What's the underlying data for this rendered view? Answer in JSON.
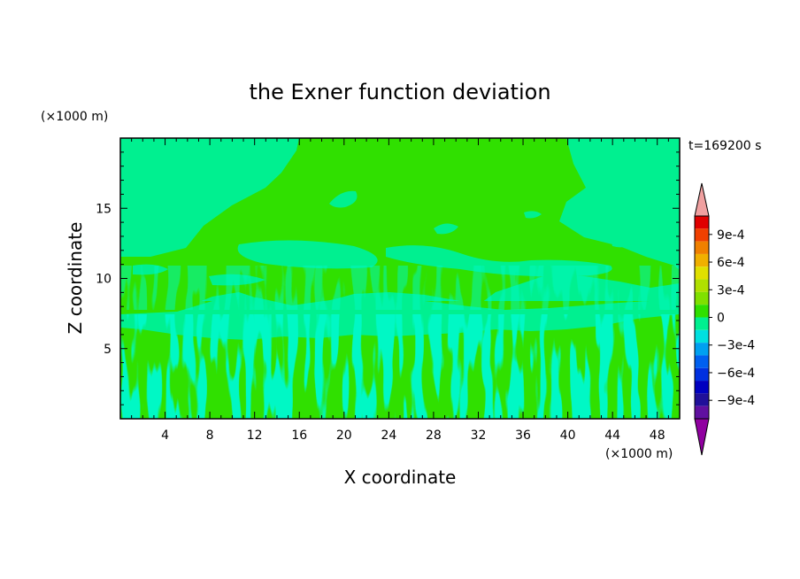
{
  "chart_data": {
    "type": "heatmap",
    "title": "the Exner function deviation",
    "xlabel": "X coordinate",
    "ylabel": "Z coordinate",
    "x_unit": "(×1000 m)",
    "y_unit": "(×1000 m)",
    "time_label": "t=169200 s",
    "xlim": [
      0,
      50
    ],
    "ylim": [
      0,
      20
    ],
    "x_ticks": [
      4,
      8,
      12,
      16,
      20,
      24,
      28,
      32,
      36,
      40,
      44,
      48
    ],
    "y_ticks": [
      5,
      10,
      15
    ],
    "colorbar": {
      "range": [
        -0.0011,
        0.0011
      ],
      "tick_values": [
        0.0009,
        0.0006,
        0.0003,
        0,
        -0.0003,
        -0.0006,
        -0.0009
      ],
      "tick_labels": [
        "9e-4",
        "6e-4",
        "3e-4",
        "0",
        "−3e-4",
        "−6e-4",
        "−9e-4"
      ],
      "colors": [
        "#f0a0a0",
        "#e00000",
        "#f04000",
        "#f08000",
        "#f0b000",
        "#e0e000",
        "#b0e000",
        "#80e000",
        "#30e000",
        "#00f090",
        "#00e0e0",
        "#00a0f0",
        "#0060f0",
        "#0030e0",
        "#0000c0",
        "#20109a",
        "#6010a0",
        "#9000a0"
      ]
    },
    "field_levels": [
      {
        "range": "0 to 1e-4",
        "color": "#00f090",
        "region": "background, mid-level band near z=8-11 and upper left/right corners"
      },
      {
        "range": "1e-4 to 2e-4",
        "color": "#30e000",
        "region": "upper dome 12-20 km for x=15-40, noisy lower layer 0-7 km"
      }
    ]
  }
}
